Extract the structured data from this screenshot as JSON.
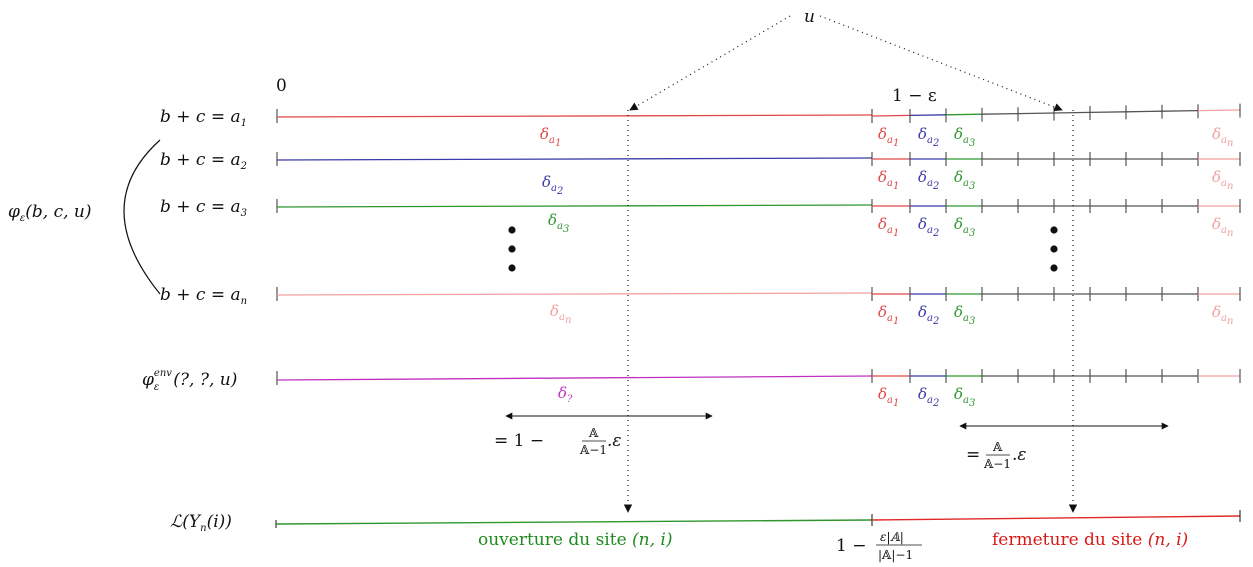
{
  "zero_label": "0",
  "one_minus_eps": "1 − ε",
  "u_label": "u",
  "phi_label": "φ",
  "phi_sub": "ε",
  "phi_args": "(b, c, u)",
  "rows": [
    {
      "label": "b + c = a",
      "sub": "1",
      "color": "#e04848",
      "delta_sub": "a",
      "delta_subsub": "1"
    },
    {
      "label": "b + c = a",
      "sub": "2",
      "color": "#3a3aa8",
      "delta_sub": "a",
      "delta_subsub": "2"
    },
    {
      "label": "b + c = a",
      "sub": "3",
      "color": "#2f962f",
      "delta_sub": "a",
      "delta_subsub": "3"
    },
    {
      "label": "b + c = a",
      "sub": "n",
      "color": "#f2a0a0",
      "delta_sub": "a",
      "delta_subsub": "n"
    }
  ],
  "env_label": {
    "phi": "φ",
    "sup": "env",
    "sub": "ε",
    "args": "(?, ?, u)"
  },
  "env_delta": "δ",
  "env_delta_sub": "?",
  "env_color": "#c030c0",
  "delta": "δ",
  "gray_color": "#555555",
  "measure_left": {
    "prefix": "= 1 −",
    "num": "𝔸",
    "den": "𝔸−1",
    "suffix": ".ε"
  },
  "measure_right": {
    "prefix": "=",
    "num": "𝔸",
    "den": "𝔸−1",
    "suffix": ".ε"
  },
  "law_label": "ℒ(Y",
  "law_sub": "n",
  "law_args": "(i))",
  "open_label": "ouverture du site",
  "open_args": "(n, i)",
  "close_label": "fermeture du site",
  "close_args": "(n, i)",
  "threshold": {
    "prefix": "1 −",
    "num": "ε|𝔸|",
    "den": "|𝔸|−1"
  },
  "open_color": "#2f962f",
  "close_color": "#e02828"
}
